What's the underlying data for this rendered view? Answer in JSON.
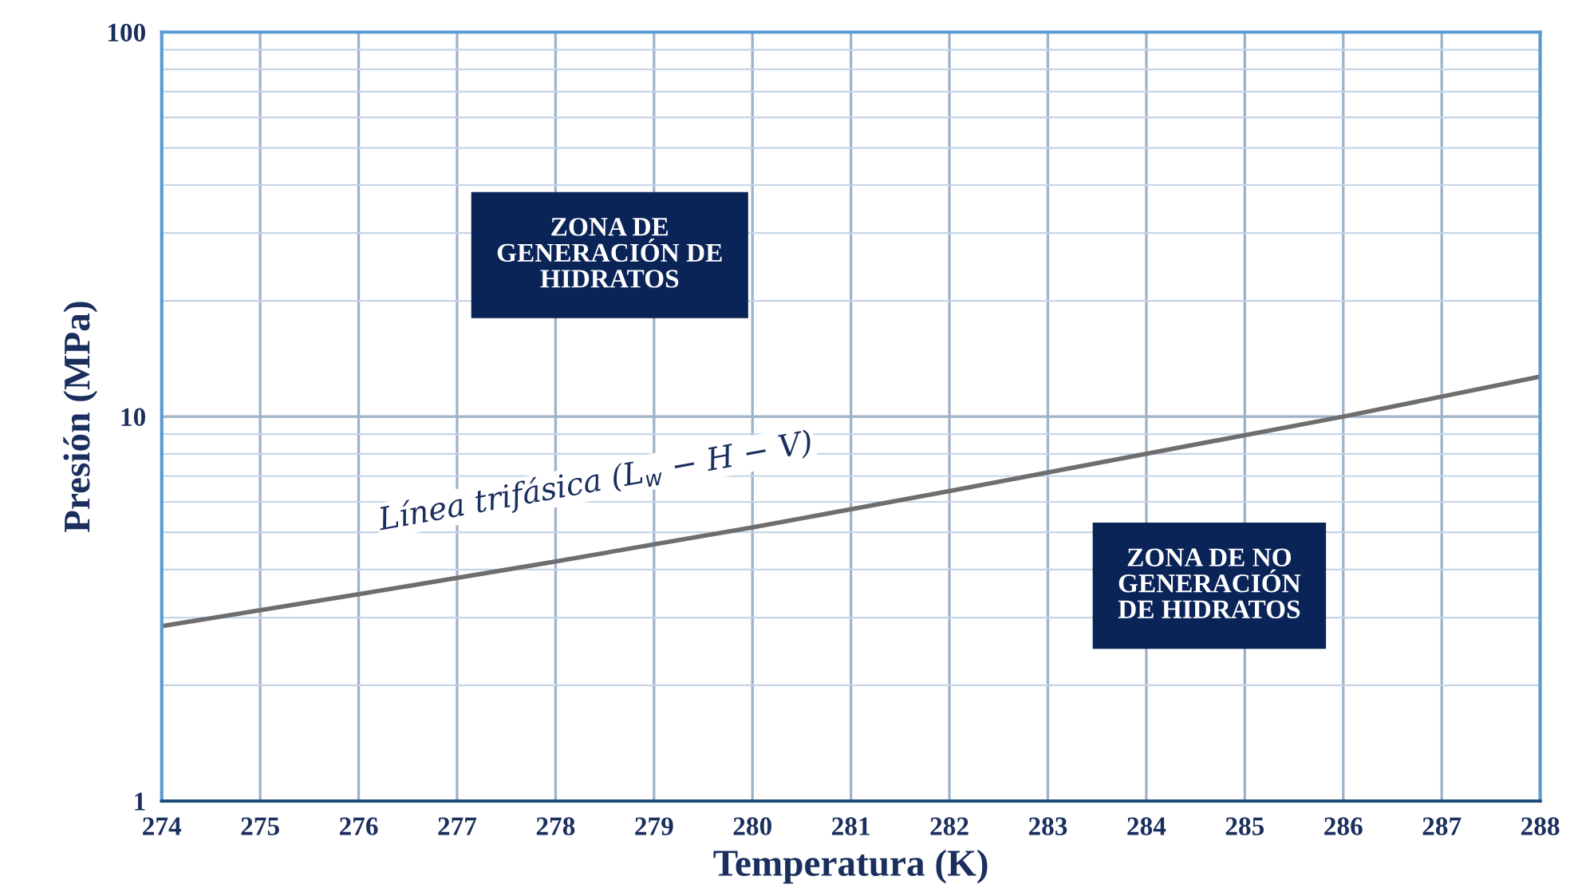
{
  "chart_data": {
    "type": "line",
    "xlabel": "Temperatura (K)",
    "ylabel": "Presión (MPa)",
    "log": "y",
    "x": [
      274,
      276,
      278,
      280,
      282,
      284,
      286,
      288
    ],
    "series": [
      {
        "color": "#6e6e6e",
        "values": [
          2.85,
          3.45,
          4.2,
          5.15,
          6.4,
          8.0,
          10.0,
          12.7
        ]
      }
    ],
    "xlim": [
      274,
      288
    ],
    "xticks": [
      274,
      275,
      276,
      277,
      278,
      279,
      280,
      281,
      282,
      283,
      284,
      285,
      286,
      287,
      288
    ],
    "ylim": [
      1,
      100
    ],
    "yticks": [
      1,
      10,
      100
    ],
    "grid": true,
    "marker": "none",
    "line_style": "solid",
    "annotations": [
      "Línea trifásica (L$_{w}$ − H − V)",
      "ZONA DE\nGENERACIÓN DE\nHIDRATOS",
      "ZONA DE NO\nGENERACIÓN\nDE HIDRATOS"
    ]
  }
}
